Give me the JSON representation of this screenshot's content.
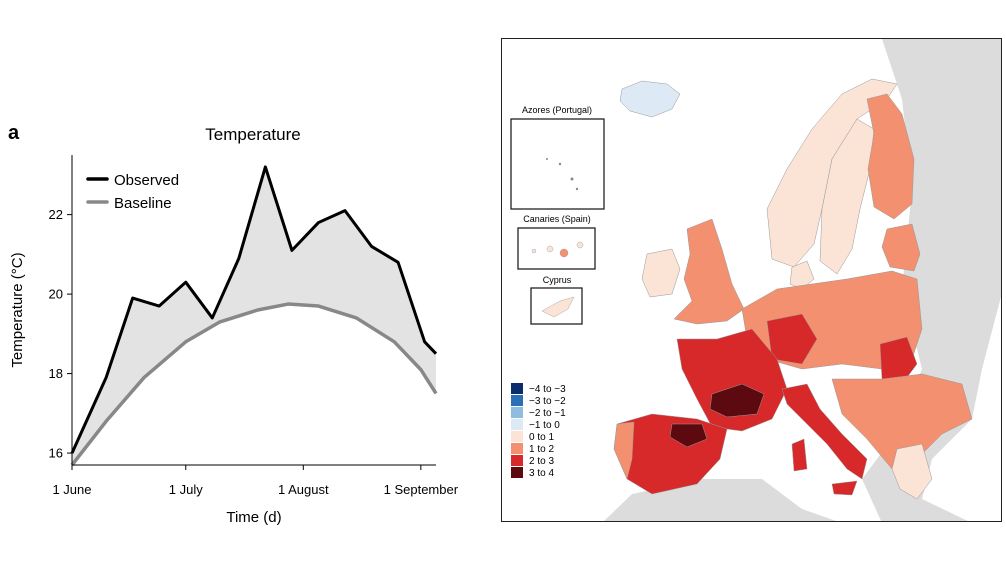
{
  "panel_label": "a",
  "chart_data": [
    {
      "type": "area",
      "title": "Temperature",
      "xlabel": "Time (d)",
      "ylabel": "Temperature (°C)",
      "ylim": [
        15.7,
        23.5
      ],
      "yticks": [
        16,
        18,
        20,
        22
      ],
      "xtick_labels": [
        "1 June",
        "1 July",
        "1 August",
        "1 September"
      ],
      "legend_position": "top-left",
      "series": [
        {
          "name": "Observed",
          "color": "#000000",
          "points": [
            [
              "2023-06-01",
              16.0
            ],
            [
              "2023-06-10",
              17.9
            ],
            [
              "2023-06-17",
              19.9
            ],
            [
              "2023-06-24",
              19.7
            ],
            [
              "2023-07-01",
              20.3
            ],
            [
              "2023-07-08",
              19.4
            ],
            [
              "2023-07-15",
              20.9
            ],
            [
              "2023-07-22",
              23.2
            ],
            [
              "2023-07-29",
              21.1
            ],
            [
              "2023-08-05",
              21.8
            ],
            [
              "2023-08-12",
              22.1
            ],
            [
              "2023-08-19",
              21.2
            ],
            [
              "2023-08-26",
              20.8
            ],
            [
              "2023-09-02",
              18.8
            ],
            [
              "2023-09-05",
              18.5
            ]
          ]
        },
        {
          "name": "Baseline",
          "color": "#888888",
          "points": [
            [
              "2023-06-01",
              15.7
            ],
            [
              "2023-06-10",
              16.8
            ],
            [
              "2023-06-20",
              17.9
            ],
            [
              "2023-07-01",
              18.8
            ],
            [
              "2023-07-10",
              19.3
            ],
            [
              "2023-07-20",
              19.6
            ],
            [
              "2023-07-28",
              19.75
            ],
            [
              "2023-08-05",
              19.7
            ],
            [
              "2023-08-15",
              19.4
            ],
            [
              "2023-08-25",
              18.8
            ],
            [
              "2023-09-01",
              18.1
            ],
            [
              "2023-09-05",
              17.5
            ]
          ]
        }
      ],
      "fill_color": "#e3e3e3"
    }
  ],
  "map": {
    "insets": [
      "Azores (Portugal)",
      "Canaries (Spain)",
      "Cyprus"
    ],
    "legend": [
      {
        "label": "−4 to −3",
        "color": "#0b2d6b"
      },
      {
        "label": "−3 to −2",
        "color": "#2a6fb3"
      },
      {
        "label": "−2 to −1",
        "color": "#8fbde0"
      },
      {
        "label": "−1 to 0",
        "color": "#dde9f4"
      },
      {
        "label": "0 to 1",
        "color": "#fbe3d6"
      },
      {
        "label": "1 to 2",
        "color": "#f29070"
      },
      {
        "label": "2 to 3",
        "color": "#d7282a"
      },
      {
        "label": "3 to 4",
        "color": "#5c0a10"
      }
    ]
  }
}
